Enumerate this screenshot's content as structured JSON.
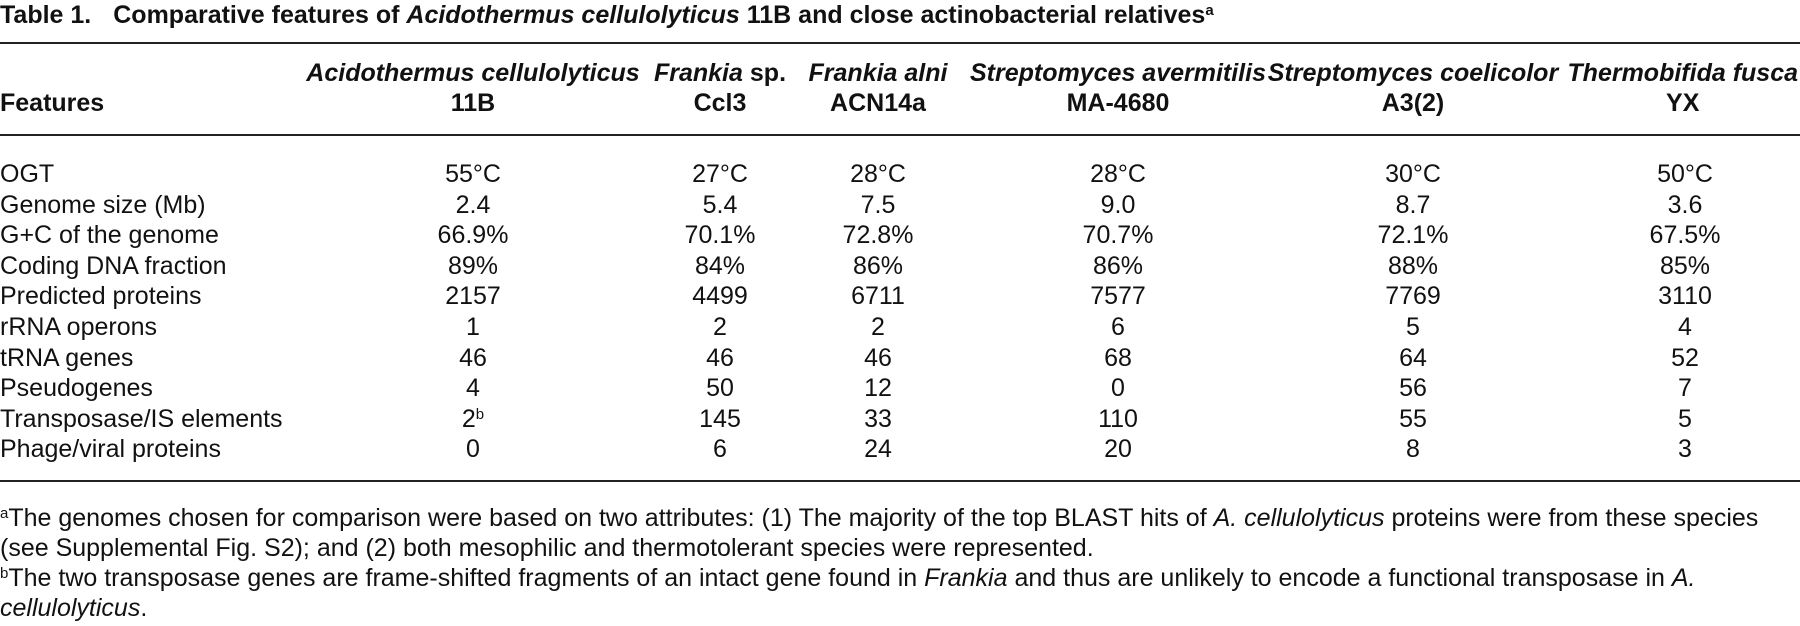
{
  "title": {
    "label": "Table 1.",
    "parts": [
      {
        "text": "Comparative features of "
      },
      {
        "text": "Acidothermus cellulolyticus",
        "italic": true
      },
      {
        "text": " 11B and close actinobacterial relatives"
      }
    ],
    "note": "a"
  },
  "table": {
    "header": {
      "features": "Features",
      "columns": [
        {
          "species": "Acidothermus cellulolyticus",
          "strain": "11B"
        },
        {
          "species": "Frankia",
          "qualifier": "sp.",
          "strain": "Ccl3"
        },
        {
          "species": "Frankia alni",
          "strain": "ACN14a"
        },
        {
          "species": "Streptomyces avermitilis",
          "strain": "MA-4680"
        },
        {
          "species": "Streptomyces coelicolor",
          "strain": "A3(2)"
        },
        {
          "species": "Thermobifida fusca",
          "strain": "YX"
        }
      ]
    },
    "rows": [
      [
        "OGT",
        "55°C",
        "27°C",
        "28°C",
        "28°C",
        "30°C",
        "50°C"
      ],
      [
        "Genome size (Mb)",
        "2.4",
        "5.4",
        "7.5",
        "9.0",
        "8.7",
        "3.6"
      ],
      [
        "G+C of the genome",
        "66.9%",
        "70.1%",
        "72.8%",
        "70.7%",
        "72.1%",
        "67.5%"
      ],
      [
        "Coding DNA fraction",
        "89%",
        "84%",
        "86%",
        "86%",
        "88%",
        "85%"
      ],
      [
        "Predicted proteins",
        "2157",
        "4499",
        "6711",
        "7577",
        "7769",
        "3110"
      ],
      [
        "rRNA operons",
        "1",
        "2",
        "2",
        "6",
        "5",
        "4"
      ],
      [
        "tRNA genes",
        "46",
        "46",
        "46",
        "68",
        "64",
        "52"
      ],
      [
        "Pseudogenes",
        "4",
        "50",
        "12",
        "0",
        "56",
        "7"
      ],
      [
        "Transposase/IS elements",
        {
          "value": "2",
          "note": "b"
        },
        "145",
        "33",
        "110",
        "55",
        "5"
      ],
      [
        "Phage/viral proteins",
        "0",
        "6",
        "24",
        "20",
        "8",
        "3"
      ]
    ]
  },
  "footnotes": [
    {
      "mark": "a",
      "parts": [
        {
          "text": "The genomes chosen for comparison were based on two attributes: (1) The majority of the top BLAST hits of "
        },
        {
          "text": "A. cellulolyticus",
          "italic": true
        },
        {
          "text": " proteins were from these species (see Supplemental Fig. S2); and (2) both mesophilic and thermotolerant species were represented."
        }
      ]
    },
    {
      "mark": "b",
      "parts": [
        {
          "text": "The two transposase genes are frame-shifted fragments of an intact gene found in "
        },
        {
          "text": "Frankia",
          "italic": true
        },
        {
          "text": " and thus are unlikely to encode a functional transposase in "
        },
        {
          "text": "A. cellulolyticus",
          "italic": true
        },
        {
          "text": "."
        }
      ]
    }
  ]
}
